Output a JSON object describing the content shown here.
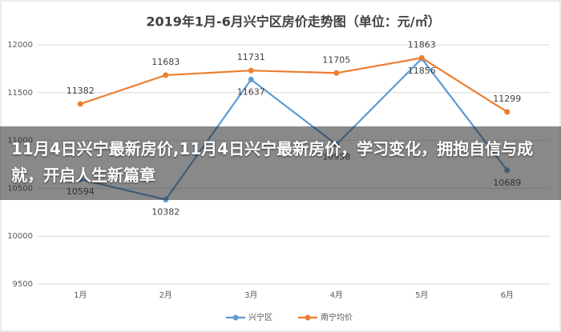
{
  "chart_data": {
    "type": "line",
    "title": "2019年1月-6月兴宁区房价走势图（单位：元/㎡）",
    "categories": [
      "1月",
      "2月",
      "3月",
      "4月",
      "5月",
      "6月"
    ],
    "series": [
      {
        "name": "兴宁区",
        "color": "#5b9bd5",
        "values": [
          10594,
          10382,
          11637,
          10958,
          11856,
          10689
        ]
      },
      {
        "name": "南宁均价",
        "color": "#ed7d31",
        "values": [
          11382,
          11683,
          11731,
          11705,
          11863,
          11299
        ]
      }
    ],
    "ylim": [
      9500,
      12000
    ],
    "yticks": [
      9500,
      10000,
      10500,
      11000,
      11500,
      12000
    ],
    "grid": true,
    "legend": "bottom",
    "overlay_title": "11月4日兴宁最新房价,11月4日兴宁最新房价，学习变化，拥抱自信与成就，开启人生新篇章"
  }
}
